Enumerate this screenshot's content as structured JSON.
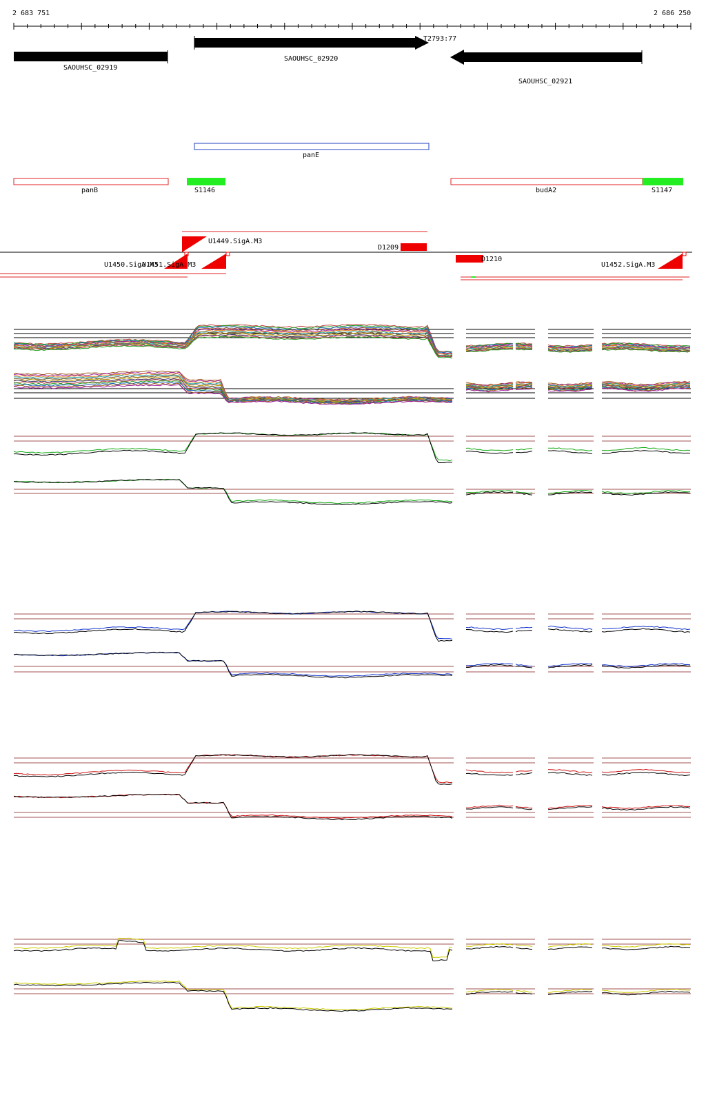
{
  "ruler": {
    "start_label": "2 683 751",
    "end_label": "2 686 250"
  },
  "genes": [
    {
      "label": "SAOUHSC_02919",
      "strand": "+"
    },
    {
      "label": "SAOUHSC_02920",
      "strand": "+"
    },
    {
      "label": "SAOUHSC_02921",
      "strand": "-"
    }
  ],
  "gene_marker_label": "T2793:77",
  "gene_names": [
    {
      "label": "panE"
    },
    {
      "label": "panB"
    },
    {
      "label": "budA2"
    }
  ],
  "srnas": [
    {
      "label": "S1146"
    },
    {
      "label": "S1147"
    }
  ],
  "features": [
    {
      "label": "U1449.SigA.M3"
    },
    {
      "label": "D1209"
    },
    {
      "label": "U1450.SigA.M3"
    },
    {
      "label": "U1451.SigA.M3"
    },
    {
      "label": "D1210"
    },
    {
      "label": "U1452.SigA.M3"
    }
  ],
  "colors": {
    "gene": "#000000",
    "gene_name_outline_blue": "#2040c0",
    "gene_name_outline_red": "#e02020",
    "srna": "#22ee22",
    "promoter": "#ee0000",
    "threshold": "#a05050",
    "track_groups": [
      "multi",
      "#11aa11",
      "#1133cc",
      "#cc1111",
      "#cccc00"
    ]
  }
}
